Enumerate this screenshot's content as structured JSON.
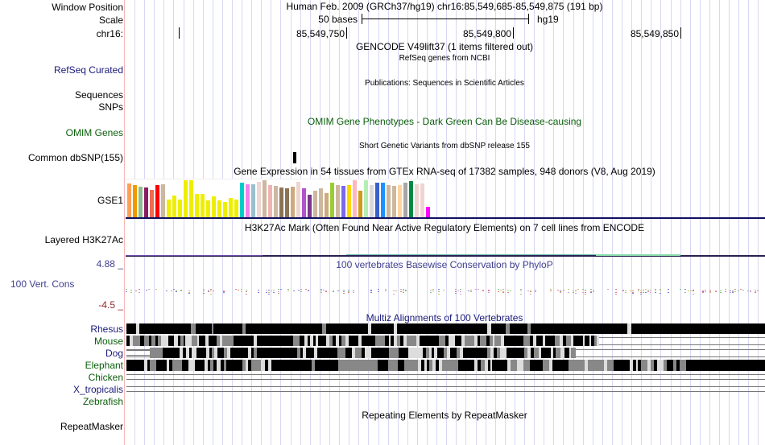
{
  "header": {
    "window_position_label": "Window Position",
    "window_position_text": "Human Feb. 2009 (GRCh37/hg19)   chr16:85,549,685-85,549,875 (191 bp)",
    "scale_label": "Scale",
    "scale_text": "50 bases",
    "scale_assembly": "hg19",
    "chrom_label": "chr16:",
    "positions": [
      "85,549,750",
      "85,549,800",
      "85,549,850"
    ]
  },
  "tracks": {
    "gencode_title": "GENCODE V49lift37 (1 items filtered out)",
    "refseq_label": "RefSeq Curated",
    "refseq_title": "RefSeq genes from NCBI",
    "publications_title": "Publications: Sequences in Scientific Articles",
    "sequences_label": "Sequences",
    "snps_label": "SNPs",
    "omim_label": "OMIM Genes",
    "omim_title": "OMIM Gene Phenotypes - Dark Green Can Be Disease-causing",
    "dbsnp_title": "Short Genetic Variants from dbSNP release 155",
    "dbsnp_label": "Common dbSNP(155)",
    "gtex_title": "Gene Expression in 54 tissues from GTEx RNA-seq of 17382 samples, 948 donors (V8, Aug 2019)",
    "gtex_label": "GSE1",
    "h3k27ac_label": "Layered H3K27Ac",
    "h3k27ac_title": "H3K27Ac Mark (Often Found Near Active Regulatory Elements) on 7 cell lines from ENCODE",
    "cons_max": "4.88 _",
    "cons_label": "100 Vert. Cons",
    "cons_min": "-4.5 _",
    "cons_title": "100 vertebrates Basewise Conservation by PhyloP",
    "multiz_title": "Multiz Alignments of 100 Vertebrates",
    "species": [
      {
        "name": "Rhesus",
        "color": "#1a1a7a"
      },
      {
        "name": "Mouse",
        "color": "#0b5e0b"
      },
      {
        "name": "Dog",
        "color": "#1a1a7a"
      },
      {
        "name": "Elephant",
        "color": "#0b5e0b"
      },
      {
        "name": "Chicken",
        "color": "#0b5e0b"
      },
      {
        "name": "X_tropicalis",
        "color": "#1a1a7a"
      },
      {
        "name": "Zebrafish",
        "color": "#0b5e0b"
      }
    ],
    "repeatmasker_label": "RepeatMasker",
    "repeatmasker_title": "Repeating Elements by RepeatMasker"
  },
  "gtex_bars": {
    "colors": [
      "#ff9f55",
      "#ee9a00",
      "#8fbc8f",
      "#8b1c62",
      "#ee6a50",
      "#ff0000",
      "#cdb79e",
      "#eeee00",
      "#eeee00",
      "#eeee00",
      "#eeee00",
      "#eeee00",
      "#eeee00",
      "#eeee00",
      "#eeee00",
      "#eeee00",
      "#eeee00",
      "#eeee00",
      "#eeee00",
      "#eeee00",
      "#00cdcd",
      "#ee82ee",
      "#9ac0cd",
      "#eed5d2",
      "#cdb79e",
      "#eeb4b4",
      "#cdb79e",
      "#8b7355",
      "#8b7355",
      "#cdaa7d",
      "#eed5d2",
      "#b452cd",
      "#7a378b",
      "#cdb79e",
      "#cdb79e",
      "#cdaa7d",
      "#9acd32",
      "#cdb79e",
      "#7b68ee",
      "#ffd700",
      "#ffb6c1",
      "#cd9b1d",
      "#b4eeb4",
      "#d9d9d9",
      "#3a5fcd",
      "#1e90ff",
      "#cdb79e",
      "#cdb79e",
      "#ffd39b",
      "#a6a6a6",
      "#008b45",
      "#eed5d2",
      "#eed5d2",
      "#ff00ff"
    ],
    "values": [
      0.92,
      0.88,
      0.82,
      0.8,
      0.74,
      0.86,
      0.89,
      0.48,
      0.58,
      0.48,
      1.0,
      1.0,
      0.62,
      0.62,
      0.46,
      0.56,
      0.46,
      0.42,
      0.52,
      0.48,
      0.94,
      0.9,
      0.9,
      0.96,
      1.0,
      0.88,
      0.84,
      0.8,
      0.78,
      0.82,
      0.96,
      0.78,
      0.6,
      0.72,
      0.78,
      0.66,
      0.94,
      0.86,
      0.84,
      0.86,
      1.0,
      0.72,
      1.0,
      0.86,
      0.94,
      0.94,
      0.86,
      0.84,
      0.88,
      0.94,
      0.98,
      0.9,
      0.92,
      0.28
    ]
  },
  "alignments": {
    "rhesus": [
      [
        0,
        12,
        "#000"
      ],
      [
        12,
        4,
        "#ddd"
      ],
      [
        16,
        64,
        "#000"
      ],
      [
        80,
        6,
        "#888"
      ],
      [
        86,
        20,
        "#000"
      ],
      [
        106,
        2,
        "#888"
      ],
      [
        108,
        36,
        "#000"
      ],
      [
        144,
        4,
        "#888"
      ],
      [
        148,
        95,
        "#000"
      ],
      [
        243,
        5,
        "#888"
      ],
      [
        248,
        52,
        "#000"
      ],
      [
        300,
        4,
        "#ddd"
      ],
      [
        304,
        28,
        "#000"
      ],
      [
        332,
        4,
        "#ddd"
      ],
      [
        336,
        112,
        "#000"
      ],
      [
        448,
        5,
        "#ddd"
      ],
      [
        453,
        18,
        "#000"
      ],
      [
        471,
        5,
        "#888"
      ],
      [
        476,
        22,
        "#000"
      ],
      [
        498,
        4,
        "#888"
      ],
      [
        502,
        120,
        "#000"
      ],
      [
        622,
        5,
        "#ddd"
      ],
      [
        627,
        166,
        "#000"
      ]
    ],
    "mouse": [
      [
        0,
        4,
        "#000"
      ],
      [
        4,
        4,
        "#ddd"
      ],
      [
        8,
        9,
        "#888"
      ],
      [
        17,
        5,
        "#000"
      ],
      [
        22,
        6,
        "#888"
      ],
      [
        28,
        3,
        "#000"
      ],
      [
        31,
        5,
        "#888"
      ],
      [
        36,
        3,
        "#000"
      ],
      [
        39,
        4,
        "#888"
      ],
      [
        43,
        9,
        "#ddd"
      ],
      [
        52,
        7,
        "#000"
      ],
      [
        59,
        5,
        "#ddd"
      ],
      [
        64,
        3,
        "#000"
      ],
      [
        67,
        4,
        "#888"
      ],
      [
        71,
        2,
        "#000"
      ],
      [
        73,
        8,
        "#ddd"
      ],
      [
        81,
        7,
        "#888"
      ],
      [
        88,
        2,
        "#ddd"
      ],
      [
        90,
        8,
        "#000"
      ],
      [
        98,
        4,
        "#ddd"
      ],
      [
        102,
        10,
        "#000"
      ],
      [
        112,
        4,
        "#888"
      ],
      [
        116,
        3,
        "#ddd"
      ],
      [
        119,
        14,
        "#888"
      ],
      [
        133,
        25,
        "#000"
      ],
      [
        158,
        4,
        "#ddd"
      ],
      [
        162,
        45,
        "#000"
      ],
      [
        207,
        8,
        "#888"
      ],
      [
        215,
        6,
        "#000"
      ],
      [
        221,
        4,
        "#ddd"
      ],
      [
        225,
        3,
        "#000"
      ],
      [
        228,
        4,
        "#ddd"
      ],
      [
        232,
        3,
        "#000"
      ],
      [
        235,
        3,
        "#ddd"
      ],
      [
        238,
        10,
        "#000"
      ],
      [
        248,
        4,
        "#ddd"
      ],
      [
        252,
        4,
        "#888"
      ],
      [
        256,
        4,
        "#000"
      ],
      [
        260,
        4,
        "#ddd"
      ],
      [
        264,
        3,
        "#000"
      ],
      [
        267,
        5,
        "#888"
      ],
      [
        272,
        4,
        "#ddd"
      ],
      [
        276,
        12,
        "#000"
      ],
      [
        288,
        4,
        "#ddd"
      ],
      [
        292,
        17,
        "#000"
      ],
      [
        309,
        12,
        "#888"
      ],
      [
        321,
        5,
        "#000"
      ],
      [
        326,
        2,
        "#ddd"
      ],
      [
        328,
        4,
        "#000"
      ],
      [
        332,
        4,
        "#ddd"
      ],
      [
        336,
        4,
        "#888"
      ],
      [
        340,
        4,
        "#000"
      ],
      [
        344,
        4,
        "#ddd"
      ],
      [
        348,
        12,
        "#888"
      ],
      [
        360,
        4,
        "#ddd"
      ],
      [
        364,
        24,
        "#000"
      ],
      [
        388,
        8,
        "#888"
      ],
      [
        396,
        4,
        "#000"
      ],
      [
        400,
        8,
        "#ddd"
      ],
      [
        408,
        8,
        "#000"
      ],
      [
        416,
        4,
        "#ddd"
      ],
      [
        420,
        12,
        "#888"
      ],
      [
        432,
        4,
        "#ddd"
      ],
      [
        436,
        3,
        "#000"
      ],
      [
        439,
        8,
        "#888"
      ],
      [
        447,
        4,
        "#000"
      ],
      [
        451,
        4,
        "#888"
      ],
      [
        455,
        2,
        "#ddd"
      ],
      [
        457,
        8,
        "#888"
      ],
      [
        465,
        4,
        "#ddd"
      ],
      [
        469,
        24,
        "#000"
      ],
      [
        493,
        8,
        "#888"
      ],
      [
        501,
        4,
        "#000"
      ],
      [
        505,
        4,
        "#ddd"
      ],
      [
        509,
        8,
        "#000"
      ],
      [
        517,
        3,
        "#ddd"
      ],
      [
        520,
        12,
        "#000"
      ],
      [
        532,
        6,
        "#888"
      ],
      [
        538,
        4,
        "#ddd"
      ],
      [
        542,
        4,
        "#000"
      ],
      [
        546,
        6,
        "#888"
      ],
      [
        552,
        3,
        "#ddd"
      ],
      [
        555,
        12,
        "#000"
      ],
      [
        567,
        4,
        "#ddd"
      ],
      [
        569,
        6,
        "#000"
      ],
      [
        575,
        2,
        "#ddd"
      ],
      [
        577,
        4,
        "#000"
      ],
      [
        581,
        3,
        "#888"
      ],
      [
        584,
        3,
        "#ddd"
      ]
    ],
    "dog": [
      [
        29,
        16,
        "#888"
      ],
      [
        45,
        21,
        "#000"
      ],
      [
        66,
        4,
        "#ddd"
      ],
      [
        70,
        4,
        "#000"
      ],
      [
        74,
        4,
        "#ddd"
      ],
      [
        78,
        3,
        "#000"
      ],
      [
        81,
        6,
        "#ddd"
      ],
      [
        87,
        12,
        "#000"
      ],
      [
        99,
        4,
        "#ddd"
      ],
      [
        103,
        3,
        "#000"
      ],
      [
        106,
        3,
        "#888"
      ],
      [
        109,
        4,
        "#ddd"
      ],
      [
        113,
        8,
        "#000"
      ],
      [
        121,
        4,
        "#888"
      ],
      [
        125,
        4,
        "#ddd"
      ],
      [
        129,
        22,
        "#000"
      ],
      [
        151,
        4,
        "#ddd"
      ],
      [
        155,
        3,
        "#000"
      ],
      [
        158,
        4,
        "#888"
      ],
      [
        162,
        50,
        "#000"
      ],
      [
        212,
        4,
        "#888"
      ],
      [
        216,
        3,
        "#000"
      ],
      [
        219,
        4,
        "#ddd"
      ],
      [
        223,
        10,
        "#000"
      ],
      [
        233,
        4,
        "#ddd"
      ],
      [
        237,
        25,
        "#000"
      ],
      [
        262,
        10,
        "#888"
      ],
      [
        272,
        8,
        "#000"
      ],
      [
        280,
        4,
        "#ddd"
      ],
      [
        284,
        8,
        "#888"
      ],
      [
        292,
        4,
        "#000"
      ],
      [
        296,
        8,
        "#ddd"
      ],
      [
        304,
        22,
        "#000"
      ],
      [
        326,
        12,
        "#888"
      ],
      [
        338,
        12,
        "#000"
      ],
      [
        350,
        18,
        "#ddd"
      ],
      [
        368,
        4,
        "#000"
      ],
      [
        372,
        4,
        "#888"
      ],
      [
        376,
        3,
        "#ddd"
      ],
      [
        379,
        3,
        "#000"
      ],
      [
        382,
        4,
        "#ddd"
      ],
      [
        386,
        8,
        "#000"
      ],
      [
        394,
        4,
        "#888"
      ],
      [
        398,
        4,
        "#ddd"
      ],
      [
        402,
        8,
        "#000"
      ],
      [
        410,
        4,
        "#888"
      ],
      [
        414,
        4,
        "#ddd"
      ],
      [
        418,
        30,
        "#000"
      ],
      [
        448,
        4,
        "#888"
      ],
      [
        452,
        4,
        "#ddd"
      ],
      [
        456,
        4,
        "#000"
      ],
      [
        460,
        4,
        "#888"
      ],
      [
        464,
        8,
        "#ddd"
      ],
      [
        472,
        22,
        "#000"
      ],
      [
        494,
        4,
        "#888"
      ],
      [
        498,
        4,
        "#ddd"
      ],
      [
        502,
        4,
        "#000"
      ],
      [
        506,
        6,
        "#888"
      ],
      [
        512,
        3,
        "#ddd"
      ],
      [
        515,
        12,
        "#000"
      ],
      [
        527,
        3,
        "#ddd"
      ],
      [
        530,
        3,
        "#000"
      ],
      [
        533,
        6,
        "#888"
      ],
      [
        539,
        5,
        "#ddd"
      ],
      [
        544,
        6,
        "#000"
      ],
      [
        550,
        2,
        "#ddd"
      ],
      [
        552,
        6,
        "#888"
      ]
    ],
    "elephant": [
      [
        0,
        22,
        "#000"
      ],
      [
        22,
        4,
        "#ddd"
      ],
      [
        26,
        3,
        "#000"
      ],
      [
        29,
        8,
        "#888"
      ],
      [
        37,
        13,
        "#000"
      ],
      [
        50,
        3,
        "#ddd"
      ],
      [
        53,
        4,
        "#000"
      ],
      [
        57,
        12,
        "#888"
      ],
      [
        69,
        8,
        "#000"
      ],
      [
        77,
        8,
        "#ddd"
      ],
      [
        85,
        12,
        "#000"
      ],
      [
        97,
        4,
        "#ddd"
      ],
      [
        101,
        3,
        "#000"
      ],
      [
        104,
        4,
        "#888"
      ],
      [
        108,
        4,
        "#000"
      ],
      [
        112,
        5,
        "#ddd"
      ],
      [
        117,
        4,
        "#000"
      ],
      [
        121,
        3,
        "#888"
      ],
      [
        124,
        20,
        "#000"
      ],
      [
        144,
        4,
        "#888"
      ],
      [
        148,
        3,
        "#ddd"
      ],
      [
        151,
        4,
        "#000"
      ],
      [
        155,
        12,
        "#888"
      ],
      [
        167,
        5,
        "#ddd"
      ],
      [
        172,
        4,
        "#000"
      ],
      [
        176,
        4,
        "#ddd"
      ],
      [
        180,
        50,
        "#000"
      ],
      [
        230,
        4,
        "#888"
      ],
      [
        234,
        29,
        "#000"
      ],
      [
        263,
        49,
        "#888"
      ],
      [
        312,
        13,
        "#000"
      ],
      [
        325,
        12,
        "#888"
      ],
      [
        337,
        8,
        "#000"
      ],
      [
        345,
        17,
        "#888"
      ],
      [
        362,
        4,
        "#ddd"
      ],
      [
        366,
        4,
        "#000"
      ],
      [
        370,
        3,
        "#ddd"
      ],
      [
        373,
        3,
        "#000"
      ],
      [
        376,
        4,
        "#888"
      ],
      [
        380,
        4,
        "#ddd"
      ],
      [
        384,
        4,
        "#000"
      ],
      [
        388,
        4,
        "#ddd"
      ],
      [
        392,
        20,
        "#888"
      ],
      [
        412,
        20,
        "#000"
      ],
      [
        432,
        4,
        "#ddd"
      ],
      [
        436,
        4,
        "#000"
      ],
      [
        440,
        5,
        "#888"
      ],
      [
        445,
        4,
        "#ddd"
      ],
      [
        449,
        3,
        "#000"
      ],
      [
        452,
        2,
        "#ddd"
      ],
      [
        454,
        19,
        "#000"
      ],
      [
        473,
        4,
        "#ddd"
      ],
      [
        477,
        8,
        "#888"
      ],
      [
        485,
        8,
        "#ddd"
      ],
      [
        493,
        8,
        "#888"
      ],
      [
        501,
        16,
        "#000"
      ],
      [
        517,
        8,
        "#888"
      ],
      [
        525,
        4,
        "#ddd"
      ],
      [
        529,
        20,
        "#000"
      ],
      [
        549,
        20,
        "#888"
      ],
      [
        569,
        4,
        "#ddd"
      ],
      [
        573,
        20,
        "#888"
      ],
      [
        593,
        4,
        "#ddd"
      ],
      [
        597,
        8,
        "#888"
      ],
      [
        605,
        20,
        "#000"
      ],
      [
        625,
        4,
        "#ddd"
      ],
      [
        629,
        4,
        "#000"
      ],
      [
        633,
        2,
        "#ddd"
      ],
      [
        635,
        4,
        "#000"
      ],
      [
        639,
        8,
        "#888"
      ],
      [
        647,
        4,
        "#ddd"
      ],
      [
        651,
        4,
        "#888"
      ],
      [
        655,
        4,
        "#000"
      ],
      [
        659,
        8,
        "#ddd"
      ],
      [
        667,
        4,
        "#888"
      ],
      [
        671,
        8,
        "#000"
      ],
      [
        679,
        4,
        "#888"
      ],
      [
        683,
        4,
        "#000"
      ],
      [
        687,
        8,
        "#888"
      ],
      [
        695,
        98,
        "#000"
      ]
    ]
  },
  "colors": {
    "track_separator": "#f5b8b8",
    "grid_line": "#d8d8f4",
    "gtex_baseline": "#101060",
    "h3k27ac_line": "#3a2a7a",
    "h3k27ac_teal": "#66ccaa"
  }
}
